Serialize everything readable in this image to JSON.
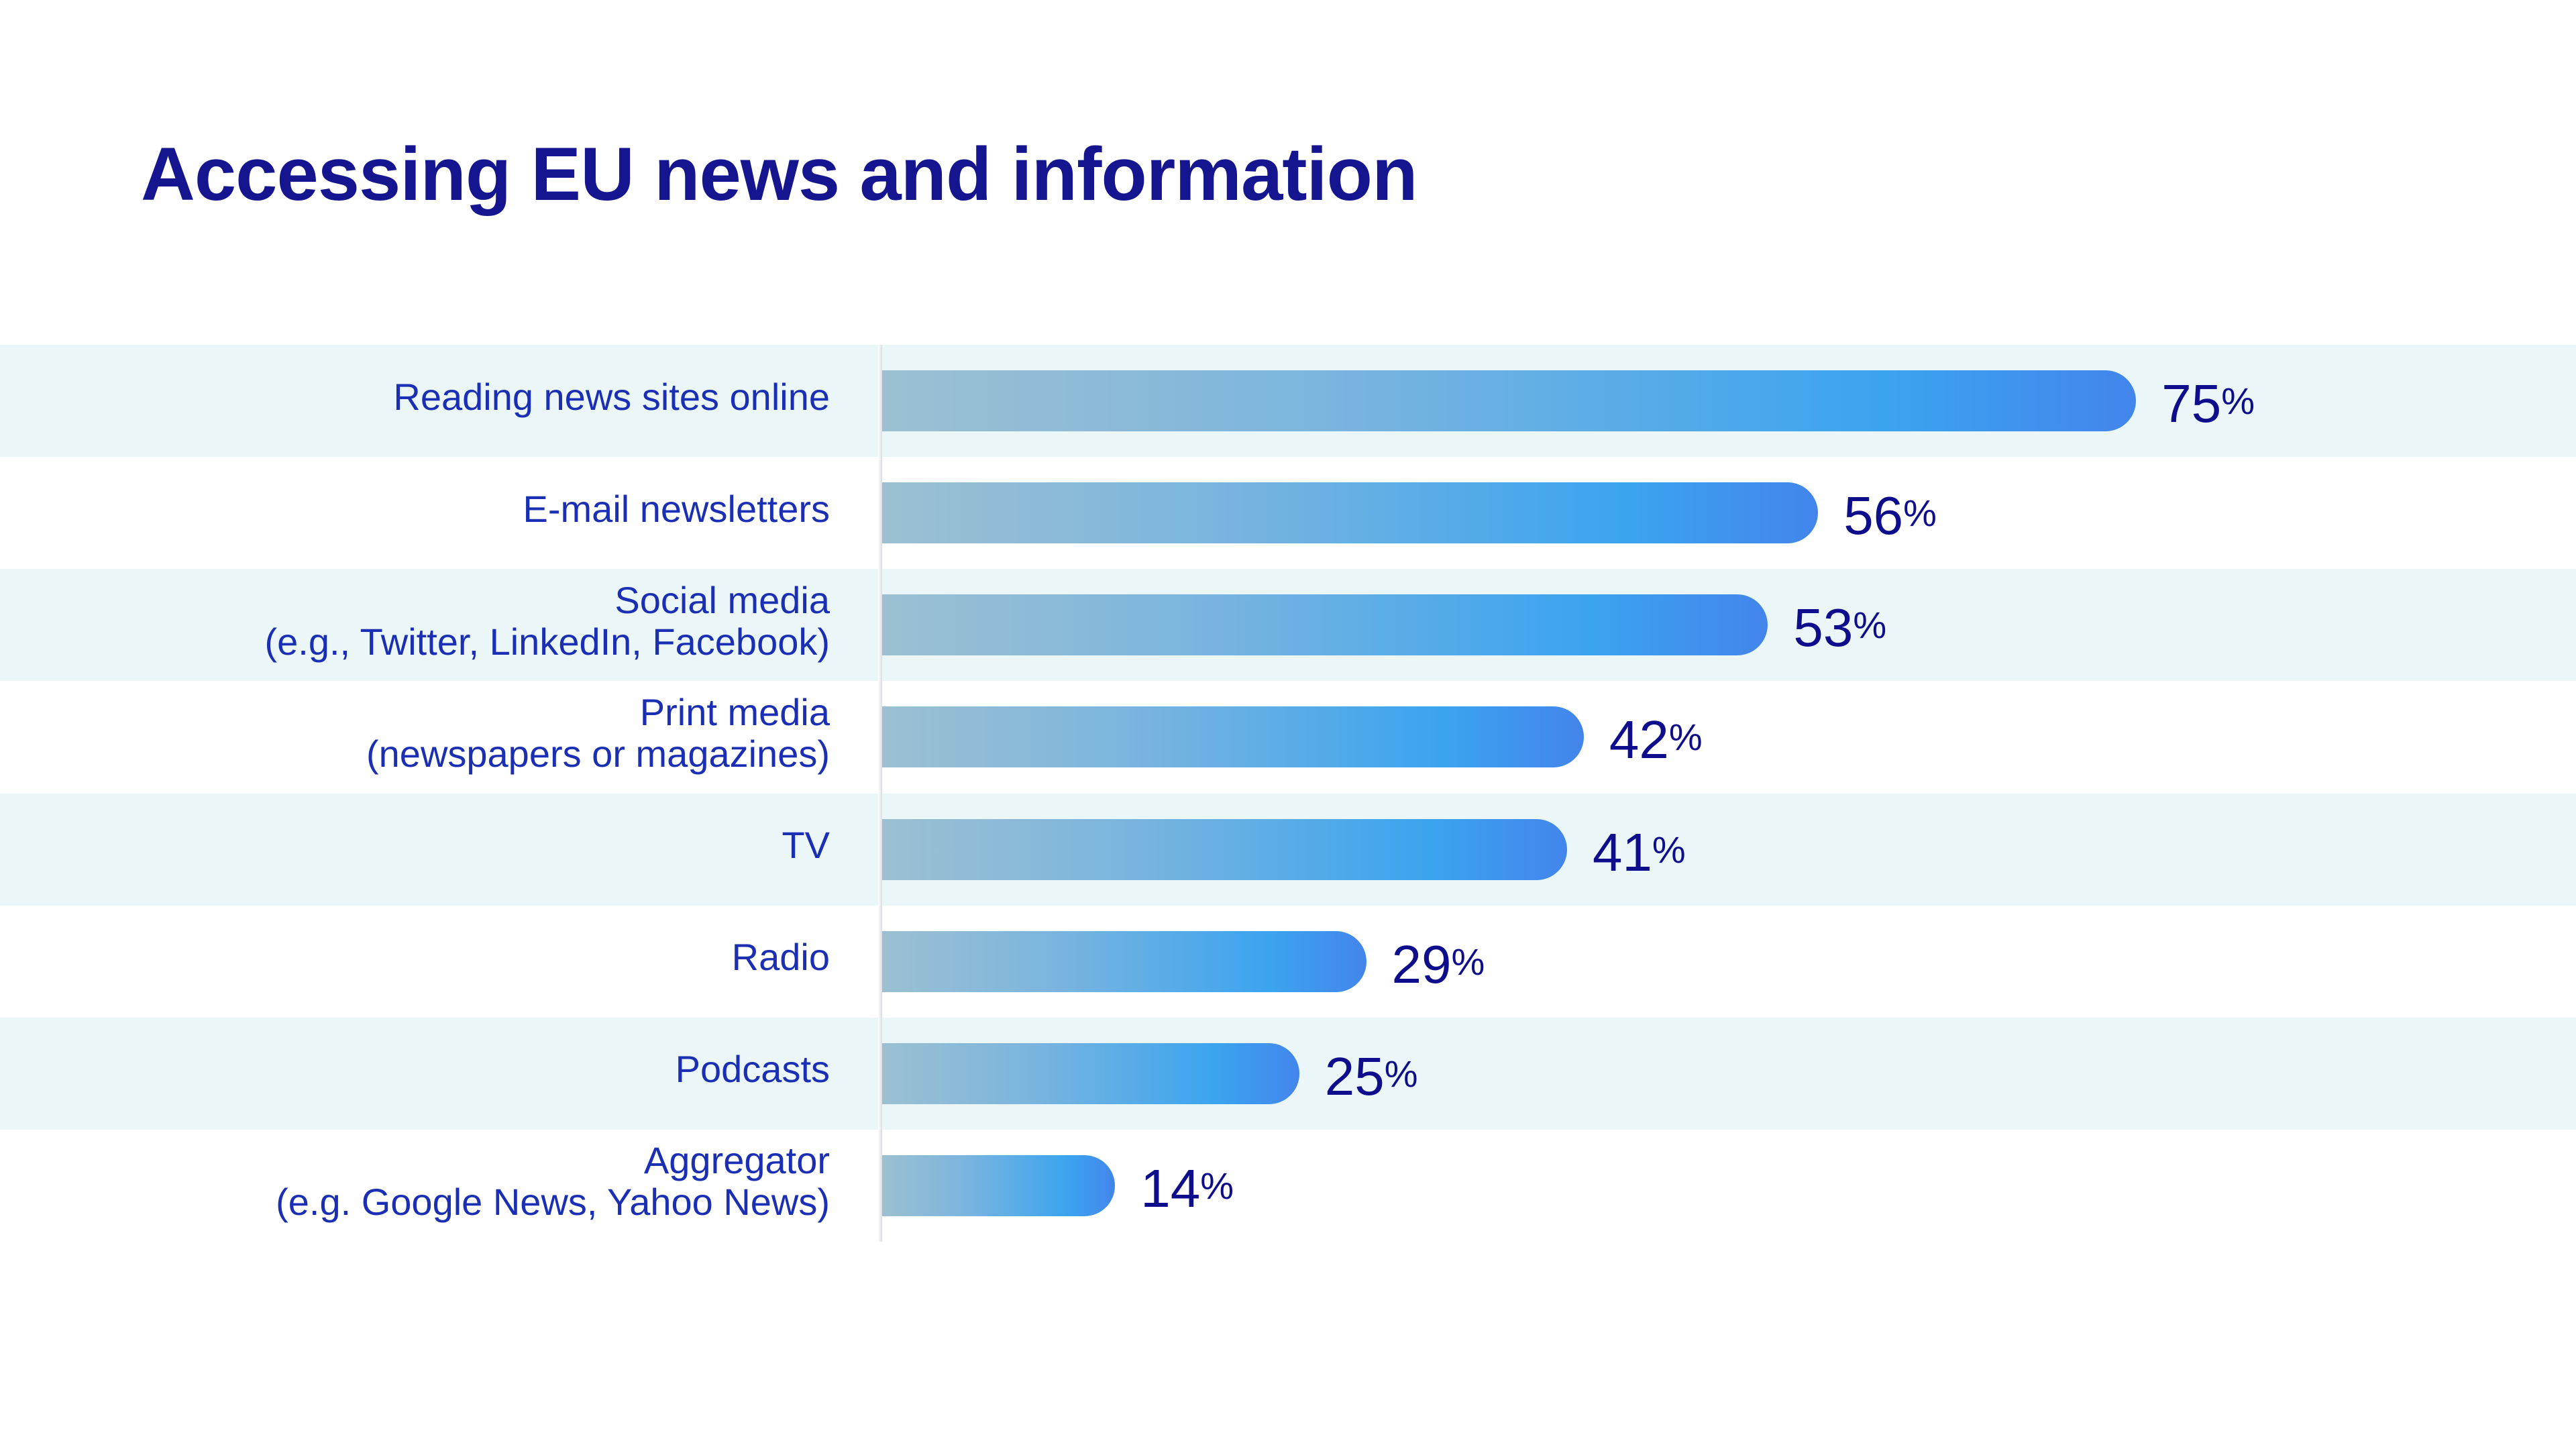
{
  "title": "Accessing EU news and information",
  "chart_data": {
    "type": "bar",
    "orientation": "horizontal",
    "title": "Accessing EU news and information",
    "categories": [
      [
        "Reading news sites online"
      ],
      [
        "E-mail newsletters"
      ],
      [
        "Social media",
        "(e.g., Twitter, LinkedIn, Facebook)"
      ],
      [
        "Print media",
        "(newspapers or magazines)"
      ],
      [
        "TV"
      ],
      [
        "Radio"
      ],
      [
        "Podcasts"
      ],
      [
        "Aggregator",
        "(e.g. Google News, Yahoo News)"
      ]
    ],
    "values": [
      75,
      56,
      53,
      42,
      41,
      29,
      25,
      14
    ],
    "value_suffix": "%",
    "xlabel": "",
    "ylabel": "",
    "xlim": [
      0,
      100
    ],
    "grid": false,
    "colors": {
      "gradient_start": "#9cc0d1",
      "gradient_mid": "#3ba4ef",
      "gradient_end": "#4385eb",
      "band": "#eaf6f8",
      "title": "#15158f",
      "label": "#1a2fb3",
      "value": "#0e0e8c"
    }
  }
}
